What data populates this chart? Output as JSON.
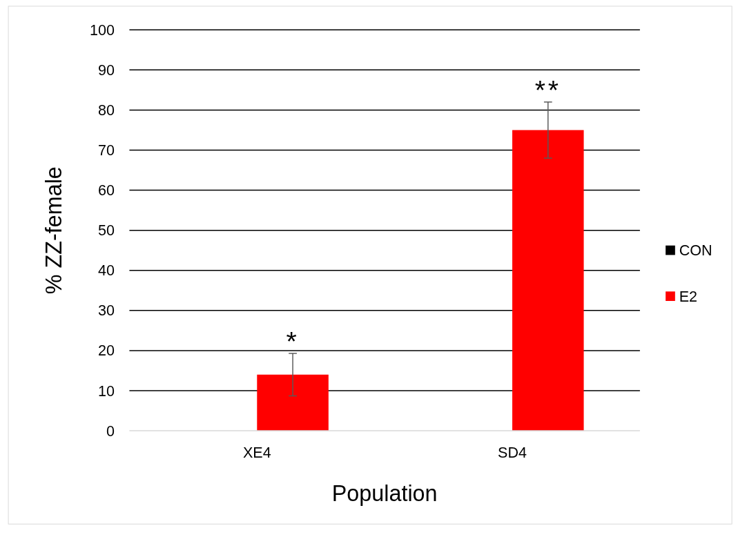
{
  "chart_data": {
    "type": "bar",
    "xlabel": "Population",
    "ylabel": "% ZZ-female",
    "categories": [
      "XE4",
      "SD4"
    ],
    "series": [
      {
        "name": "CON",
        "color": "#000000",
        "values": [
          0,
          0
        ]
      },
      {
        "name": "E2",
        "color": "#ff0000",
        "values": [
          14,
          75
        ],
        "errors": [
          5.3,
          7
        ]
      }
    ],
    "ylim": [
      0,
      100
    ],
    "yticks": [
      0,
      10,
      20,
      30,
      40,
      50,
      60,
      70,
      80,
      90,
      100
    ],
    "grid": "y",
    "legend": "right",
    "annotations": [
      "*",
      "**"
    ]
  }
}
